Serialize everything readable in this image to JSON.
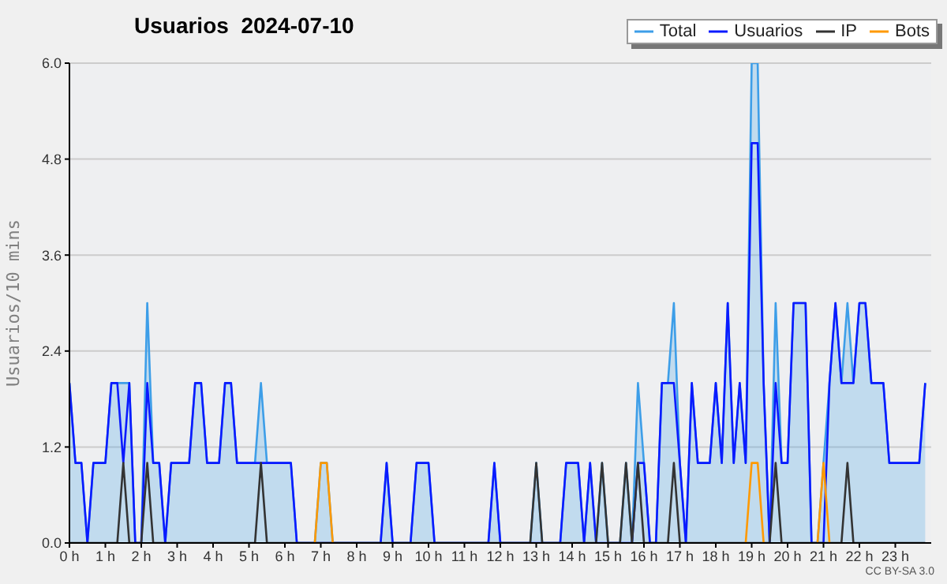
{
  "chart_data": {
    "type": "line",
    "title": "Usuarios  2024-07-10",
    "ylabel": "Usuarios/10 mins",
    "annotations": [
      "CC BY-SA 3.0"
    ],
    "x": [
      0,
      0.167,
      0.333,
      0.5,
      0.667,
      0.833,
      1,
      1.167,
      1.333,
      1.5,
      1.667,
      1.833,
      2,
      2.167,
      2.333,
      2.5,
      2.667,
      2.833,
      3,
      3.167,
      3.333,
      3.5,
      3.667,
      3.833,
      4,
      4.167,
      4.333,
      4.5,
      4.667,
      4.833,
      5,
      5.167,
      5.333,
      5.5,
      5.667,
      5.833,
      6,
      6.167,
      6.333,
      6.5,
      6.667,
      6.833,
      7,
      7.167,
      7.333,
      7.5,
      7.667,
      7.833,
      8,
      8.167,
      8.333,
      8.5,
      8.667,
      8.833,
      9,
      9.167,
      9.333,
      9.5,
      9.667,
      9.833,
      10,
      10.167,
      10.333,
      10.5,
      10.667,
      10.833,
      11,
      11.167,
      11.333,
      11.5,
      11.667,
      11.833,
      12,
      12.167,
      12.333,
      12.5,
      12.667,
      12.833,
      13,
      13.167,
      13.333,
      13.5,
      13.667,
      13.833,
      14,
      14.167,
      14.333,
      14.5,
      14.667,
      14.833,
      15,
      15.167,
      15.333,
      15.5,
      15.667,
      15.833,
      16,
      16.167,
      16.333,
      16.5,
      16.667,
      16.833,
      17,
      17.167,
      17.333,
      17.5,
      17.667,
      17.833,
      18,
      18.167,
      18.333,
      18.5,
      18.667,
      18.833,
      19,
      19.167,
      19.333,
      19.5,
      19.667,
      19.833,
      20,
      20.167,
      20.333,
      20.5,
      20.667,
      20.833,
      21,
      21.167,
      21.333,
      21.5,
      21.667,
      21.833,
      22,
      22.167,
      22.333,
      22.5,
      22.667,
      22.833,
      23,
      23.167,
      23.333,
      23.5,
      23.667,
      23.833
    ],
    "series": [
      {
        "name": "Total",
        "type": "area",
        "color": "#3d9ee8",
        "values": [
          2,
          1,
          1,
          0,
          1,
          1,
          1,
          2,
          2,
          2,
          2,
          0,
          0,
          3,
          1,
          1,
          0,
          1,
          1,
          1,
          1,
          2,
          2,
          1,
          1,
          1,
          2,
          2,
          1,
          1,
          1,
          1,
          2,
          1,
          1,
          1,
          1,
          1,
          0,
          0,
          0,
          0,
          1,
          1,
          0,
          0,
          0,
          0,
          0,
          0,
          0,
          0,
          0,
          1,
          0,
          0,
          0,
          0,
          1,
          1,
          1,
          0,
          0,
          0,
          0,
          0,
          0,
          0,
          0,
          0,
          0,
          1,
          0,
          0,
          0,
          0,
          0,
          0,
          1,
          0,
          0,
          0,
          0,
          1,
          1,
          1,
          0,
          1,
          0,
          1,
          0,
          0,
          0,
          1,
          0,
          2,
          1,
          0,
          0,
          2,
          2,
          3,
          1,
          0,
          2,
          1,
          1,
          1,
          2,
          1,
          3,
          1,
          2,
          1,
          6,
          6,
          2,
          0,
          3,
          1,
          1,
          3,
          3,
          3,
          0,
          0,
          1,
          2,
          3,
          2,
          3,
          2,
          3,
          3,
          2,
          2,
          2,
          1,
          1,
          1,
          1,
          1,
          1,
          2
        ]
      },
      {
        "name": "Usuarios",
        "color": "#0a1aff",
        "values": [
          2,
          1,
          1,
          0,
          1,
          1,
          1,
          2,
          2,
          1,
          2,
          0,
          0,
          2,
          1,
          1,
          0,
          1,
          1,
          1,
          1,
          2,
          2,
          1,
          1,
          1,
          2,
          2,
          1,
          1,
          1,
          1,
          1,
          1,
          1,
          1,
          1,
          1,
          0,
          0,
          0,
          0,
          0,
          0,
          0,
          0,
          0,
          0,
          0,
          0,
          0,
          0,
          0,
          1,
          0,
          0,
          0,
          0,
          1,
          1,
          1,
          0,
          0,
          0,
          0,
          0,
          0,
          0,
          0,
          0,
          0,
          1,
          0,
          0,
          0,
          0,
          0,
          0,
          0,
          0,
          0,
          0,
          0,
          1,
          1,
          1,
          0,
          1,
          0,
          0,
          0,
          0,
          0,
          0,
          0,
          1,
          1,
          0,
          0,
          2,
          2,
          2,
          1,
          0,
          2,
          1,
          1,
          1,
          2,
          1,
          3,
          1,
          2,
          1,
          5,
          5,
          2,
          0,
          2,
          1,
          1,
          3,
          3,
          3,
          0,
          0,
          0,
          2,
          3,
          2,
          2,
          2,
          3,
          3,
          2,
          2,
          2,
          1,
          1,
          1,
          1,
          1,
          1,
          2
        ]
      },
      {
        "name": "IP",
        "color": "#333333",
        "values": [
          0,
          0,
          0,
          0,
          0,
          0,
          0,
          0,
          0,
          1,
          0,
          0,
          0,
          1,
          0,
          0,
          0,
          0,
          0,
          0,
          0,
          0,
          0,
          0,
          0,
          0,
          0,
          0,
          0,
          0,
          0,
          0,
          1,
          0,
          0,
          0,
          0,
          0,
          0,
          0,
          0,
          0,
          0,
          0,
          0,
          0,
          0,
          0,
          0,
          0,
          0,
          0,
          0,
          0,
          0,
          0,
          0,
          0,
          0,
          0,
          0,
          0,
          0,
          0,
          0,
          0,
          0,
          0,
          0,
          0,
          0,
          0,
          0,
          0,
          0,
          0,
          0,
          0,
          1,
          0,
          0,
          0,
          0,
          0,
          0,
          0,
          0,
          0,
          0,
          1,
          0,
          0,
          0,
          1,
          0,
          1,
          0,
          0,
          0,
          0,
          0,
          1,
          0,
          0,
          0,
          0,
          0,
          0,
          0,
          0,
          0,
          0,
          0,
          0,
          0,
          0,
          0,
          0,
          1,
          0,
          0,
          0,
          0,
          0,
          0,
          0,
          0,
          0,
          0,
          0,
          1,
          0,
          0,
          0,
          0,
          0,
          0,
          0,
          0,
          0,
          0,
          0,
          0,
          0
        ]
      },
      {
        "name": "Bots",
        "color": "#ff9900",
        "values": [
          null,
          null,
          null,
          null,
          null,
          null,
          null,
          null,
          null,
          null,
          null,
          null,
          null,
          null,
          null,
          null,
          null,
          null,
          null,
          null,
          null,
          null,
          null,
          null,
          null,
          null,
          null,
          null,
          null,
          null,
          null,
          null,
          null,
          null,
          null,
          null,
          null,
          null,
          null,
          null,
          null,
          0,
          1,
          1,
          0,
          null,
          null,
          null,
          null,
          null,
          null,
          null,
          null,
          null,
          null,
          null,
          null,
          null,
          null,
          null,
          null,
          null,
          null,
          null,
          null,
          null,
          null,
          null,
          null,
          null,
          null,
          null,
          null,
          null,
          null,
          null,
          null,
          null,
          null,
          null,
          null,
          null,
          null,
          null,
          null,
          null,
          null,
          null,
          null,
          null,
          null,
          null,
          null,
          null,
          null,
          null,
          null,
          null,
          null,
          null,
          null,
          null,
          null,
          null,
          null,
          null,
          null,
          null,
          null,
          null,
          null,
          null,
          null,
          0,
          1,
          1,
          0,
          null,
          null,
          null,
          null,
          null,
          null,
          null,
          null,
          0,
          1,
          0,
          null,
          null,
          null,
          null,
          null,
          null,
          null,
          null,
          null,
          null,
          null,
          null,
          null,
          null,
          null,
          null
        ]
      }
    ],
    "xlim": [
      0,
      24
    ],
    "xticks": [
      {
        "value": 0,
        "label": "0 h"
      },
      {
        "value": 1,
        "label": "1 h"
      },
      {
        "value": 2,
        "label": "2 h"
      },
      {
        "value": 3,
        "label": "3 h"
      },
      {
        "value": 4,
        "label": "4 h"
      },
      {
        "value": 5,
        "label": "5 h"
      },
      {
        "value": 6,
        "label": "6 h"
      },
      {
        "value": 7,
        "label": "7 h"
      },
      {
        "value": 8,
        "label": "8 h"
      },
      {
        "value": 9,
        "label": "9 h"
      },
      {
        "value": 10,
        "label": "10 h"
      },
      {
        "value": 11,
        "label": "11 h"
      },
      {
        "value": 12,
        "label": "12 h"
      },
      {
        "value": 13,
        "label": "13 h"
      },
      {
        "value": 14,
        "label": "14 h"
      },
      {
        "value": 15,
        "label": "15 h"
      },
      {
        "value": 16,
        "label": "16 h"
      },
      {
        "value": 17,
        "label": "17 h"
      },
      {
        "value": 18,
        "label": "18 h"
      },
      {
        "value": 19,
        "label": "19 h"
      },
      {
        "value": 20,
        "label": "20 h"
      },
      {
        "value": 21,
        "label": "21 h"
      },
      {
        "value": 22,
        "label": "22 h"
      },
      {
        "value": 23,
        "label": "23 h"
      }
    ],
    "ylim": [
      0,
      6
    ],
    "yticks": [
      {
        "value": 0,
        "label": "0.0"
      },
      {
        "value": 1.2,
        "label": "1.2"
      },
      {
        "value": 2.4,
        "label": "2.4"
      },
      {
        "value": 3.6,
        "label": "3.6"
      },
      {
        "value": 4.8,
        "label": "4.8"
      },
      {
        "value": 6,
        "label": "6.0"
      }
    ],
    "grid": "y",
    "legend": "top right",
    "marker": "none",
    "line_style": "solid"
  }
}
